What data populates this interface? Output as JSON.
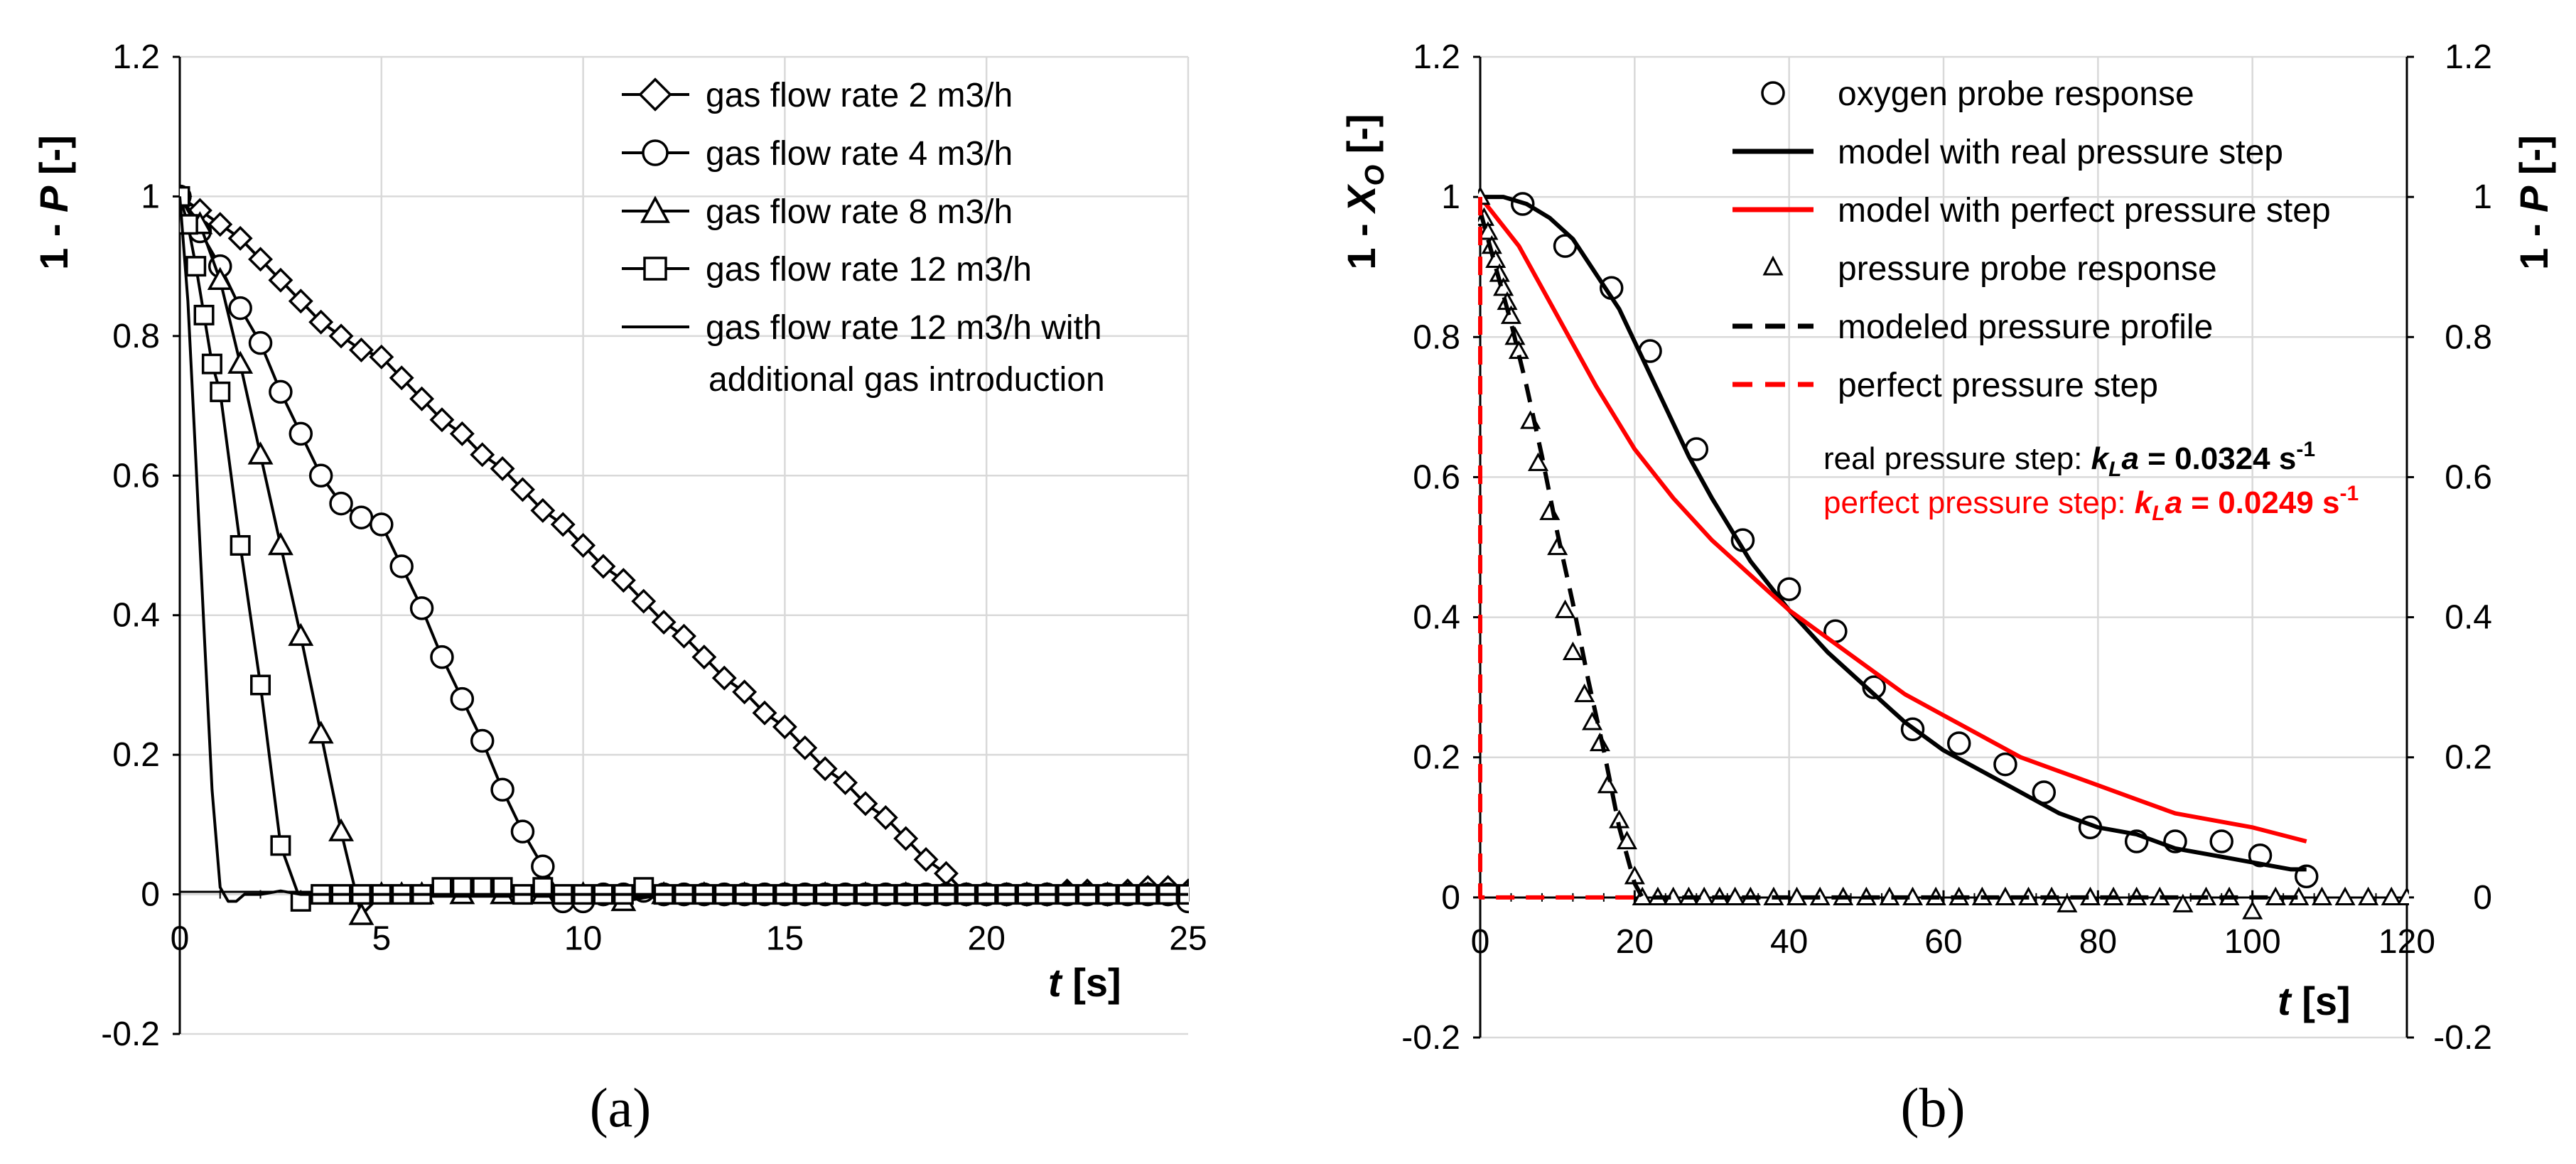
{
  "panel_a": {
    "label": "(a)",
    "ylabel_prefix": "1 - ",
    "ylabel_var": "P",
    "ylabel_unit": " [-]",
    "xlabel_var": "t",
    "xlabel_unit": " [s]",
    "xticks": [
      "0",
      "5",
      "10",
      "15",
      "20",
      "25"
    ],
    "yticks": [
      "-0.2",
      "0",
      "0.2",
      "0.4",
      "0.6",
      "0.8",
      "1",
      "1.2"
    ],
    "legend": [
      "gas flow rate 2 m3/h",
      "gas flow rate 4 m3/h",
      "gas flow rate 8 m3/h",
      "gas flow rate 12 m3/h",
      "gas flow rate 12 m3/h with",
      "additional gas introduction"
    ]
  },
  "panel_b": {
    "label": "(b)",
    "ylabel_left_prefix": "1 - ",
    "ylabel_left_var": "X",
    "ylabel_left_sub": "O",
    "ylabel_left_unit": " [-]",
    "ylabel_right_prefix": "1 - ",
    "ylabel_right_var": "P",
    "ylabel_right_unit": " [-]",
    "xlabel_var": "t",
    "xlabel_unit": " [s]",
    "xticks": [
      "0",
      "20",
      "40",
      "60",
      "80",
      "100",
      "120"
    ],
    "yticks_left": [
      "-0.2",
      "0",
      "0.2",
      "0.4",
      "0.6",
      "0.8",
      "1",
      "1.2"
    ],
    "yticks_right": [
      "-0.2",
      "0",
      "0.2",
      "0.4",
      "0.6",
      "0.8",
      "1",
      "1.2"
    ],
    "legend": [
      "oxygen probe response",
      "model with real pressure step",
      "model with perfect pressure step",
      "pressure probe response",
      "modeled pressure profile",
      "perfect pressure step"
    ],
    "annotation_real": {
      "prefix": "real pressure step: ",
      "k": "k",
      "sub": "L",
      "a": "a",
      "value": " = 0.0324 s",
      "exp": "-1"
    },
    "annotation_perfect": {
      "prefix": "perfect pressure step: ",
      "k": "k",
      "sub": "L",
      "a": "a",
      "value": " = 0.0249 s",
      "exp": "-1"
    }
  },
  "colors": {
    "black": "#000000",
    "red": "#ff0000",
    "grid": "#d9d9d9"
  },
  "chart_data": [
    {
      "type": "line",
      "title": "(a)",
      "xlabel": "t [s]",
      "ylabel": "1 - P [-]",
      "xlim": [
        0,
        25
      ],
      "ylim": [
        -0.2,
        1.2
      ],
      "series": [
        {
          "name": "gas flow rate 2 m3/h",
          "marker": "diamond",
          "x": [
            0,
            0.5,
            1,
            1.5,
            2,
            2.5,
            3,
            3.5,
            4,
            4.5,
            5,
            5.5,
            6,
            6.5,
            7,
            7.5,
            8,
            8.5,
            9,
            9.5,
            10,
            10.5,
            11,
            11.5,
            12,
            12.5,
            13,
            13.5,
            14,
            14.5,
            15,
            15.5,
            16,
            16.5,
            17,
            17.5,
            18,
            18.5,
            19,
            19.5,
            20,
            20.5,
            21,
            21.5,
            22,
            22.5,
            23,
            23.5,
            24,
            24.5,
            25
          ],
          "y": [
            1.0,
            0.98,
            0.96,
            0.94,
            0.91,
            0.88,
            0.85,
            0.82,
            0.8,
            0.78,
            0.77,
            0.74,
            0.71,
            0.68,
            0.66,
            0.63,
            0.61,
            0.58,
            0.55,
            0.53,
            0.5,
            0.47,
            0.45,
            0.42,
            0.39,
            0.37,
            0.34,
            0.31,
            0.29,
            0.26,
            0.24,
            0.21,
            0.18,
            0.16,
            0.13,
            0.11,
            0.08,
            0.05,
            0.03,
            0.0,
            0.0,
            0.0,
            0.0,
            0.0,
            0.005,
            0.005,
            0.0,
            0.005,
            0.01,
            0.01,
            0.005
          ]
        },
        {
          "name": "gas flow rate 4 m3/h",
          "marker": "circle",
          "x": [
            0,
            0.5,
            1,
            1.5,
            2,
            2.5,
            3,
            3.5,
            4,
            4.5,
            5,
            5.5,
            6,
            6.5,
            7,
            7.5,
            8,
            8.5,
            9,
            9.5,
            10,
            10.5,
            11,
            11.5,
            12,
            12.5,
            13,
            13.5,
            14,
            14.5,
            15,
            15.5,
            16,
            16.5,
            17,
            17.5,
            18,
            18.5,
            19,
            19.5,
            20,
            20.5,
            21,
            21.5,
            22,
            22.5,
            23,
            23.5,
            24,
            24.5,
            25
          ],
          "y": [
            1.0,
            0.95,
            0.9,
            0.84,
            0.79,
            0.72,
            0.66,
            0.6,
            0.56,
            0.54,
            0.53,
            0.47,
            0.41,
            0.34,
            0.28,
            0.22,
            0.15,
            0.09,
            0.04,
            -0.01,
            -0.01,
            0.0,
            0.0,
            0.005,
            0.0,
            0.0,
            0.0,
            0.0,
            0.0,
            0.0,
            0.0,
            0.0,
            0.0,
            0.0,
            0.0,
            0.0,
            0.0,
            0.0,
            0.0,
            0.0,
            0.0,
            0.0,
            0.0,
            0.0,
            0.0,
            0.0,
            0.0,
            0.0,
            0.0,
            0.0,
            -0.01
          ]
        },
        {
          "name": "gas flow rate 8 m3/h",
          "marker": "triangle",
          "x": [
            0,
            0.5,
            1,
            1.5,
            2,
            2.5,
            3,
            3.5,
            4,
            4.5,
            5,
            5.5,
            6,
            7,
            8,
            9,
            10,
            11,
            12,
            13,
            14,
            15,
            16,
            17,
            18,
            19,
            20,
            21,
            22,
            23,
            24,
            25
          ],
          "y": [
            1.0,
            0.96,
            0.88,
            0.76,
            0.63,
            0.5,
            0.37,
            0.23,
            0.09,
            -0.03,
            0.0,
            0.0,
            0.0,
            0.0,
            0.0,
            0.0,
            0.0,
            -0.01,
            0.0,
            0.0,
            0.0,
            0.0,
            0.0,
            0.0,
            0.0,
            0.0,
            0.0,
            0.0,
            0.0,
            0.0,
            0.0,
            0.0
          ]
        },
        {
          "name": "gas flow rate 12 m3/h",
          "marker": "square",
          "x": [
            0,
            0.2,
            0.4,
            0.6,
            0.8,
            1.0,
            1.5,
            2.0,
            2.5,
            3.0,
            3.5,
            4.0,
            4.5,
            5.0,
            5.5,
            6.0,
            6.5,
            7.0,
            7.5,
            8.0,
            8.5,
            9.0,
            9.5,
            10.0,
            10.5,
            11.0,
            11.5,
            12.0,
            12.5,
            13.0,
            13.5,
            14.0,
            14.5,
            15.0,
            15.5,
            16.0,
            16.5,
            17.0,
            17.5,
            18.0,
            18.5,
            19.0,
            19.5,
            20.0,
            20.5,
            21.0,
            21.5,
            22.0,
            22.5,
            23.0,
            23.5,
            24.0,
            24.5,
            25.0
          ],
          "y": [
            1.0,
            0.96,
            0.9,
            0.83,
            0.76,
            0.72,
            0.5,
            0.3,
            0.07,
            -0.01,
            0.0,
            0.0,
            0.0,
            0.0,
            0.0,
            0.0,
            0.01,
            0.01,
            0.01,
            0.01,
            0.0,
            0.01,
            0.0,
            0.0,
            0.0,
            0.0,
            0.01,
            0.0,
            0.0,
            0.0,
            0.0,
            0.0,
            0.0,
            0.0,
            0.0,
            0.0,
            0.0,
            0.0,
            0.0,
            0.0,
            0.0,
            0.0,
            0.0,
            0.0,
            0.0,
            0.0,
            0.0,
            0.0,
            0.0,
            0.0,
            0.0,
            0.0,
            0.0,
            0.0
          ]
        },
        {
          "name": "gas flow rate 12 m3/h with additional gas introduction",
          "marker": "none",
          "x": [
            0,
            0.2,
            0.4,
            0.6,
            0.8,
            1.0,
            1.2,
            1.4,
            1.6,
            1.8,
            2.0,
            2.5,
            3.0,
            4.0,
            5.0,
            6.0,
            8.0,
            10.0,
            12.0,
            14.0,
            16.0,
            18.0,
            20.0,
            22.0,
            24.0,
            25.0
          ],
          "y": [
            1.0,
            0.85,
            0.62,
            0.38,
            0.15,
            0.01,
            -0.01,
            -0.01,
            0.0,
            0.0,
            0.0,
            0.005,
            0.0,
            0.0,
            0.0,
            0.0,
            0.0,
            0.0,
            0.0,
            0.0,
            0.0,
            0.0,
            0.0,
            0.0,
            0.0,
            0.0
          ]
        }
      ]
    },
    {
      "type": "line",
      "title": "(b)",
      "xlabel": "t [s]",
      "ylabel": "1 - X_O [-]",
      "ylabel_right": "1 - P [-]",
      "xlim": [
        0,
        120
      ],
      "ylim": [
        -0.2,
        1.2
      ],
      "series": [
        {
          "name": "oxygen probe response",
          "marker": "circle",
          "x": [
            5.5,
            11,
            17,
            22,
            28,
            34,
            40,
            46,
            51,
            56,
            62,
            68,
            73,
            79,
            85,
            90,
            96,
            101,
            107
          ],
          "y": [
            0.99,
            0.93,
            0.87,
            0.78,
            0.64,
            0.51,
            0.44,
            0.38,
            0.3,
            0.24,
            0.22,
            0.19,
            0.15,
            0.1,
            0.08,
            0.08,
            0.08,
            0.06,
            0.03
          ]
        },
        {
          "name": "model with real pressure step",
          "marker": "none",
          "x": [
            0,
            3,
            6,
            9,
            12,
            15,
            18,
            21,
            24,
            27,
            30,
            35,
            40,
            45,
            50,
            55,
            60,
            65,
            70,
            75,
            80,
            85,
            90,
            95,
            100,
            105,
            107
          ],
          "y": [
            1.0,
            1.0,
            0.99,
            0.97,
            0.94,
            0.89,
            0.84,
            0.77,
            0.7,
            0.63,
            0.57,
            0.48,
            0.41,
            0.35,
            0.3,
            0.25,
            0.21,
            0.18,
            0.15,
            0.12,
            0.1,
            0.09,
            0.07,
            0.06,
            0.05,
            0.04,
            0.04
          ]
        },
        {
          "name": "model with perfect pressure step",
          "marker": "none",
          "x": [
            0,
            5,
            10,
            15,
            20,
            25,
            30,
            35,
            40,
            45,
            50,
            55,
            60,
            65,
            70,
            75,
            80,
            85,
            90,
            95,
            100,
            107
          ],
          "y": [
            1.0,
            0.93,
            0.83,
            0.73,
            0.64,
            0.57,
            0.51,
            0.46,
            0.41,
            0.37,
            0.33,
            0.29,
            0.26,
            0.23,
            0.2,
            0.18,
            0.16,
            0.14,
            0.12,
            0.11,
            0.1,
            0.08
          ]
        },
        {
          "name": "pressure probe response",
          "marker": "triangle",
          "x": [
            0,
            0.5,
            1,
            1.5,
            2,
            2.5,
            3,
            3.5,
            4,
            4.5,
            5,
            6.5,
            7.5,
            9,
            10,
            11,
            12,
            13.5,
            14.5,
            15.5,
            16.5,
            18,
            19,
            20,
            21,
            23,
            25,
            27,
            29,
            31,
            33,
            35,
            38,
            41,
            44,
            47,
            50,
            53,
            56,
            59,
            62,
            65,
            68,
            71,
            74,
            76,
            79,
            82,
            85,
            88,
            91,
            94,
            97,
            100,
            103,
            106,
            109,
            112,
            115,
            118,
            120
          ],
          "y": [
            1.0,
            0.97,
            0.95,
            0.93,
            0.91,
            0.89,
            0.87,
            0.85,
            0.83,
            0.8,
            0.78,
            0.68,
            0.62,
            0.55,
            0.5,
            0.41,
            0.35,
            0.29,
            0.25,
            0.22,
            0.16,
            0.11,
            0.08,
            0.03,
            0.0,
            0.0,
            0.0,
            0.0,
            0.0,
            0.0,
            0.0,
            0.0,
            0.0,
            0.0,
            0.0,
            0.0,
            0.0,
            0.0,
            0.0,
            0.0,
            0.0,
            0.0,
            0.0,
            0.0,
            0.0,
            -0.01,
            0.0,
            0.0,
            0.0,
            0.0,
            -0.01,
            0.0,
            0.0,
            -0.02,
            0.0,
            0.0,
            0.0,
            0.0,
            0.0,
            0.0,
            0.0
          ]
        },
        {
          "name": "modeled pressure profile",
          "marker": "none",
          "dashed": true,
          "x": [
            0,
            2,
            4,
            6,
            8,
            10,
            12,
            14,
            16,
            18,
            20,
            21,
            25,
            35,
            50,
            70,
            90,
            107
          ],
          "y": [
            0.98,
            0.9,
            0.82,
            0.73,
            0.63,
            0.52,
            0.42,
            0.31,
            0.21,
            0.1,
            0.02,
            0.0,
            0.0,
            0.0,
            0.0,
            0.0,
            0.0,
            0.0
          ]
        },
        {
          "name": "perfect pressure step",
          "marker": "none",
          "dashed": true,
          "x": [
            0,
            0,
            21
          ],
          "y": [
            1.0,
            0.0,
            0.0
          ]
        }
      ],
      "annotations": [
        "real pressure step: kLa = 0.0324 s-1",
        "perfect pressure step: kLa = 0.0249 s-1"
      ]
    }
  ]
}
